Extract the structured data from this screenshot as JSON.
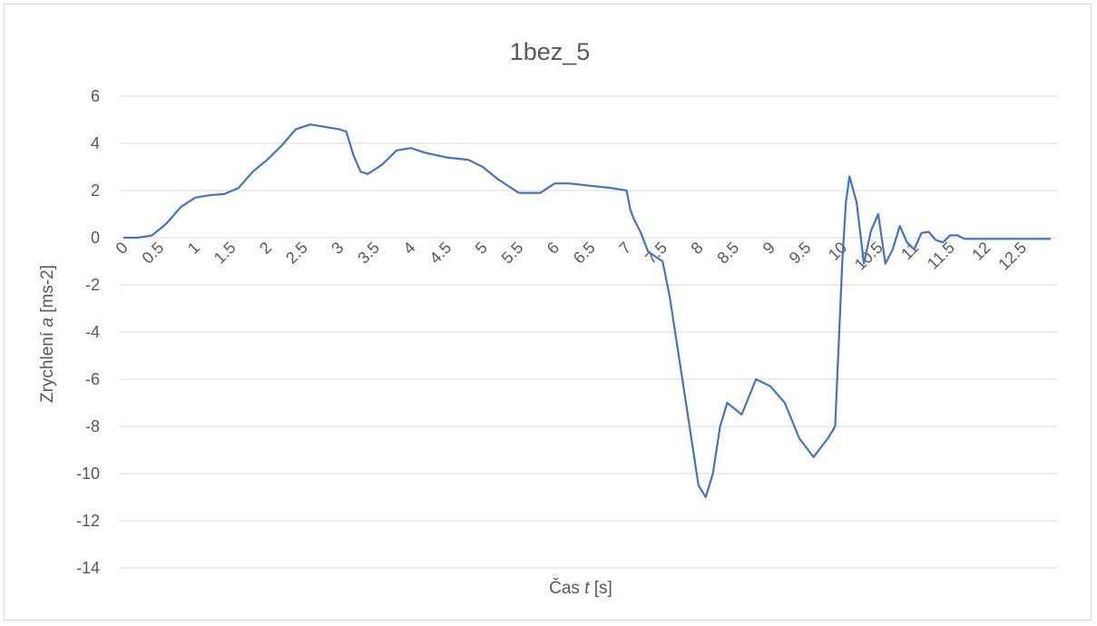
{
  "chart_data": {
    "type": "line",
    "title": "1bez_5",
    "xlabel_parts": [
      "Čas ",
      "t",
      " [s]"
    ],
    "ylabel_parts": [
      "Zrychlení ",
      "a",
      " [ms-2]"
    ],
    "ylim": [
      -14,
      6
    ],
    "xlim": [
      -0.05,
      13
    ],
    "y_ticks": [
      "-14",
      "-12",
      "-10",
      "-8",
      "-6",
      "-4",
      "-2",
      "0",
      "2",
      "4",
      "6"
    ],
    "x_ticks": [
      "0",
      "0.5",
      "1",
      "1.5",
      "2",
      "2.5",
      "3",
      "3.5",
      "4",
      "4.5",
      "5",
      "5.5",
      "6",
      "6.5",
      "7",
      "7.5",
      "8",
      "8.5",
      "9",
      "9.5",
      "10",
      "10.5",
      "11",
      "11.5",
      "12",
      "12.5"
    ],
    "grid": true,
    "legend": "none",
    "series": [
      {
        "color": "#4472c4",
        "x": [
          0,
          0.2,
          0.4,
          0.6,
          0.8,
          1.0,
          1.2,
          1.4,
          1.6,
          1.8,
          2.0,
          2.2,
          2.4,
          2.6,
          2.8,
          3.0,
          3.1,
          3.2,
          3.3,
          3.4,
          3.6,
          3.8,
          4.0,
          4.2,
          4.5,
          4.8,
          5.0,
          5.2,
          5.5,
          5.8,
          6.0,
          6.2,
          6.5,
          6.8,
          7.0,
          7.05,
          7.1,
          7.2,
          7.3,
          7.5,
          7.6,
          7.8,
          8.0,
          8.1,
          8.2,
          8.3,
          8.4,
          8.6,
          8.8,
          9.0,
          9.2,
          9.4,
          9.6,
          9.8,
          9.9,
          10.0,
          10.05,
          10.1,
          10.2,
          10.3,
          10.4,
          10.5,
          10.6,
          10.7,
          10.8,
          10.9,
          11.0,
          11.1,
          11.2,
          11.3,
          11.4,
          11.5,
          11.6,
          11.7,
          11.8,
          12.0,
          12.2,
          12.5,
          12.9
        ],
        "y": [
          0,
          0,
          0.1,
          0.6,
          1.3,
          1.7,
          1.8,
          1.85,
          2.1,
          2.8,
          3.3,
          3.9,
          4.6,
          4.8,
          4.7,
          4.6,
          4.5,
          3.5,
          2.8,
          2.7,
          3.1,
          3.7,
          3.8,
          3.6,
          3.4,
          3.3,
          3.0,
          2.5,
          1.9,
          1.9,
          2.3,
          2.3,
          2.2,
          2.1,
          2.0,
          1.2,
          0.8,
          0.2,
          -0.6,
          -1.0,
          -2.5,
          -6.5,
          -10.5,
          -11.0,
          -10.0,
          -8.0,
          -7.0,
          -7.5,
          -6.0,
          -6.3,
          -7.0,
          -8.5,
          -9.3,
          -8.5,
          -8.0,
          -1.0,
          1.5,
          2.6,
          1.5,
          -1.1,
          0.3,
          1.0,
          -1.1,
          -0.5,
          0.5,
          -0.2,
          -0.5,
          0.2,
          0.25,
          -0.1,
          -0.2,
          0.1,
          0.1,
          -0.05,
          -0.05,
          -0.05,
          -0.05,
          -0.05,
          -0.05
        ]
      }
    ]
  }
}
